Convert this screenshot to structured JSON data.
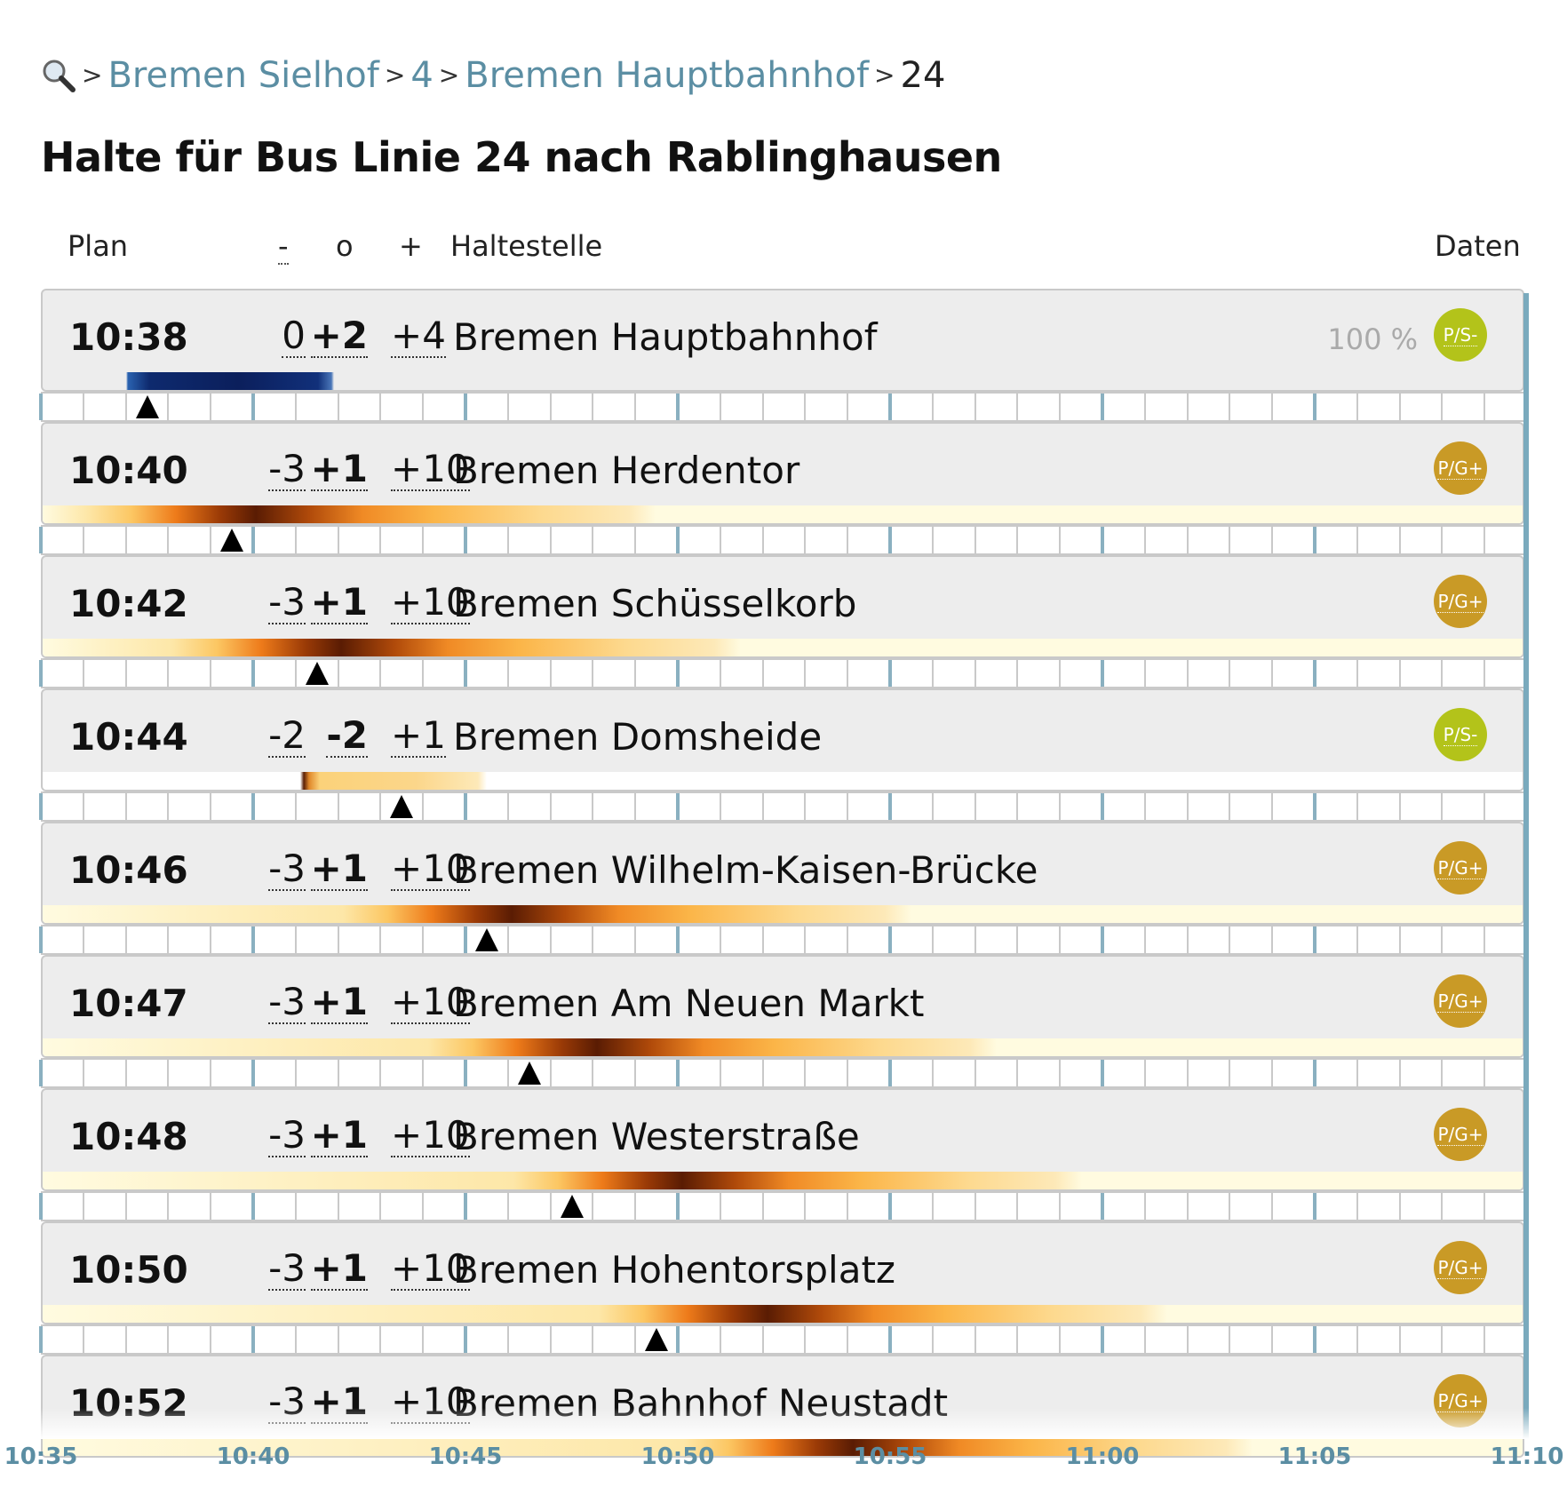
{
  "breadcrumb": {
    "search_icon": "magnifier-icon",
    "separator": ">",
    "items": [
      "Bremen Sielhof",
      "4",
      "Bremen Hauptbahnhof",
      "24"
    ]
  },
  "title": "Halte für Bus Linie 24 nach Rablinghausen",
  "columns": {
    "plan": "Plan",
    "minus": "-",
    "circle": "o",
    "plus": "+",
    "stop": "Haltestelle",
    "data": "Daten"
  },
  "colors": {
    "accent": "#5b8ea3",
    "badge_ps": "#b3c31a",
    "badge_pg": "#c99a26",
    "marker": "#000000"
  },
  "axis": {
    "labels": [
      "10:35",
      "10:40",
      "10:45",
      "10:50",
      "10:55",
      "11:00",
      "11:05",
      "11:10"
    ]
  },
  "stops": [
    {
      "plan": "10:38",
      "early": "0",
      "mid": "+2",
      "late": "+4",
      "name": "Bremen Hauptbahnhof",
      "percent": "100 %",
      "badge": "P/S-",
      "badge_type": "ps",
      "scheme": "blue",
      "marker_min": 2.5
    },
    {
      "plan": "10:40",
      "early": "-3",
      "mid": "+1",
      "late": "+10",
      "name": "Bremen Herdentor",
      "percent": "",
      "badge": "P/G+",
      "badge_type": "pg",
      "scheme": "orange",
      "marker_min": 4.5
    },
    {
      "plan": "10:42",
      "early": "-3",
      "mid": "+1",
      "late": "+10",
      "name": "Bremen Schüsselkorb",
      "percent": "",
      "badge": "P/G+",
      "badge_type": "pg",
      "scheme": "orange",
      "marker_min": 6.5
    },
    {
      "plan": "10:44",
      "early": "-2",
      "mid": "-2",
      "late": "+1",
      "name": "Bremen Domsheide",
      "percent": "",
      "badge": "P/S-",
      "badge_type": "ps",
      "scheme": "orange_short",
      "marker_min": 8.5
    },
    {
      "plan": "10:46",
      "early": "-3",
      "mid": "+1",
      "late": "+10",
      "name": "Bremen Wilhelm-Kaisen-Brücke",
      "percent": "",
      "badge": "P/G+",
      "badge_type": "pg",
      "scheme": "orange",
      "marker_min": 10.5
    },
    {
      "plan": "10:47",
      "early": "-3",
      "mid": "+1",
      "late": "+10",
      "name": "Bremen Am Neuen Markt",
      "percent": "",
      "badge": "P/G+",
      "badge_type": "pg",
      "scheme": "orange",
      "marker_min": 11.5
    },
    {
      "plan": "10:48",
      "early": "-3",
      "mid": "+1",
      "late": "+10",
      "name": "Bremen Westerstraße",
      "percent": "",
      "badge": "P/G+",
      "badge_type": "pg",
      "scheme": "orange",
      "marker_min": 12.5
    },
    {
      "plan": "10:50",
      "early": "-3",
      "mid": "+1",
      "late": "+10",
      "name": "Bremen Hohentorsplatz",
      "percent": "",
      "badge": "P/G+",
      "badge_type": "pg",
      "scheme": "orange",
      "marker_min": 14.5
    },
    {
      "plan": "10:52",
      "early": "-3",
      "mid": "+1",
      "late": "+10",
      "name": "Bremen Bahnhof Neustadt",
      "percent": "",
      "badge": "P/G+",
      "badge_type": "pg",
      "scheme": "orange",
      "marker_min": null
    }
  ]
}
